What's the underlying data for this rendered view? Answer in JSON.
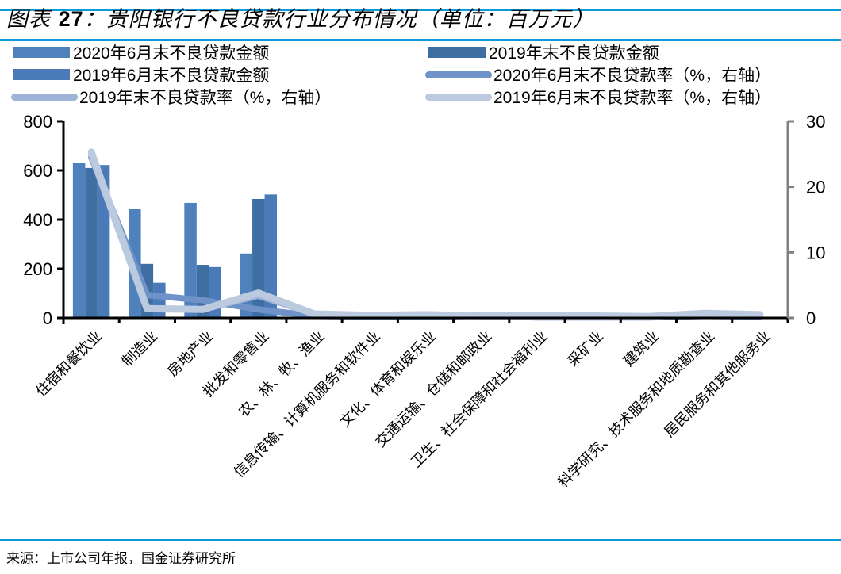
{
  "header": {
    "title_prefix": "图表",
    "title_number": "27",
    "title_text": "：贵阳银行不良贷款行业分布情况（单位：百万元）"
  },
  "legend": [
    {
      "label": "2020年6月末不良贷款金额",
      "type": "bar",
      "color": "#4f81bd"
    },
    {
      "label": "2019年末不良贷款金额",
      "type": "bar",
      "color": "#3f6ea3"
    },
    {
      "label": "2019年6月末不良贷款金额",
      "type": "bar",
      "color": "#4a7ab8"
    },
    {
      "label": "2020年6月末不良贷款率（%，右轴）",
      "type": "line",
      "color": "#6f93c8"
    },
    {
      "label": "2019年末不良贷款率（%，右轴）",
      "type": "line",
      "color": "#9fb3d6"
    },
    {
      "label": "2019年6月末不良贷款率（%，右轴）",
      "type": "line",
      "color": "#bccae0"
    }
  ],
  "source": "来源：上市公司年报，国金证券研究所",
  "colors": {
    "accent_rule": "#0a9bd8",
    "bar_2020h1": "#4f81bd",
    "bar_2019ye": "#3f6ea3",
    "bar_2019h1": "#4a7ab8",
    "line_2020h1": "#6f93c8",
    "line_2019ye": "#9fb3d6",
    "line_2019h1": "#bccae0"
  },
  "chart_data": {
    "type": "bar",
    "title": "贵阳银行不良贷款行业分布情况（单位：百万元）",
    "xlabel": "",
    "ylabel": "百万元",
    "y2label": "%",
    "ylim": [
      0,
      800
    ],
    "y2lim": [
      0,
      30
    ],
    "yticks": [
      0,
      200,
      400,
      600,
      800
    ],
    "y2ticks": [
      0,
      10,
      20,
      30
    ],
    "grid": false,
    "legend_position": "top",
    "categories": [
      "住宿和餐饮业",
      "制造业",
      "房地产业",
      "批发和零售业",
      "农、林、牧、渔业",
      "信息传输、计算机服务和软件业",
      "文化、体育和娱乐业",
      "交通运输、仓储和邮政业",
      "卫生、社会保障和社会福利业",
      "采矿业",
      "建筑业",
      "科学研究、技术服务和地质勘查业",
      "居民服务和其他服务业"
    ],
    "series": [
      {
        "name": "2020年6月末不良贷款金额",
        "type": "bar",
        "axis": "left",
        "values": [
          632,
          445,
          468,
          262,
          2,
          1,
          1,
          12,
          0,
          0,
          0,
          0,
          0
        ]
      },
      {
        "name": "2019年末不良贷款金额",
        "type": "bar",
        "axis": "left",
        "values": [
          610,
          220,
          216,
          484,
          1,
          1,
          1,
          2,
          0,
          0,
          0,
          0,
          0
        ]
      },
      {
        "name": "2019年6月末不良贷款金额",
        "type": "bar",
        "axis": "left",
        "values": [
          622,
          143,
          207,
          502,
          1,
          1,
          1,
          1,
          0,
          0,
          0,
          0,
          0
        ]
      },
      {
        "name": "2020年6月末不良贷款率（%，右轴）",
        "type": "line",
        "axis": "right",
        "values": [
          24.5,
          3.5,
          2.7,
          1.3,
          0.3,
          0.2,
          0.2,
          0.3,
          0.1,
          0.1,
          0.1,
          0.3,
          0.2
        ]
      },
      {
        "name": "2019年末不良贷款率（%，右轴）",
        "type": "line",
        "axis": "right",
        "values": [
          24.8,
          1.5,
          1.3,
          3.4,
          0.6,
          0.4,
          0.5,
          0.3,
          0.3,
          0.3,
          0.2,
          0.6,
          0.4
        ]
      },
      {
        "name": "2019年6月末不良贷款率（%，右轴）",
        "type": "line",
        "axis": "right",
        "values": [
          25.3,
          1.4,
          1.3,
          3.8,
          0.6,
          0.4,
          0.5,
          0.3,
          0.3,
          0.3,
          0.2,
          0.7,
          0.5
        ]
      }
    ]
  }
}
